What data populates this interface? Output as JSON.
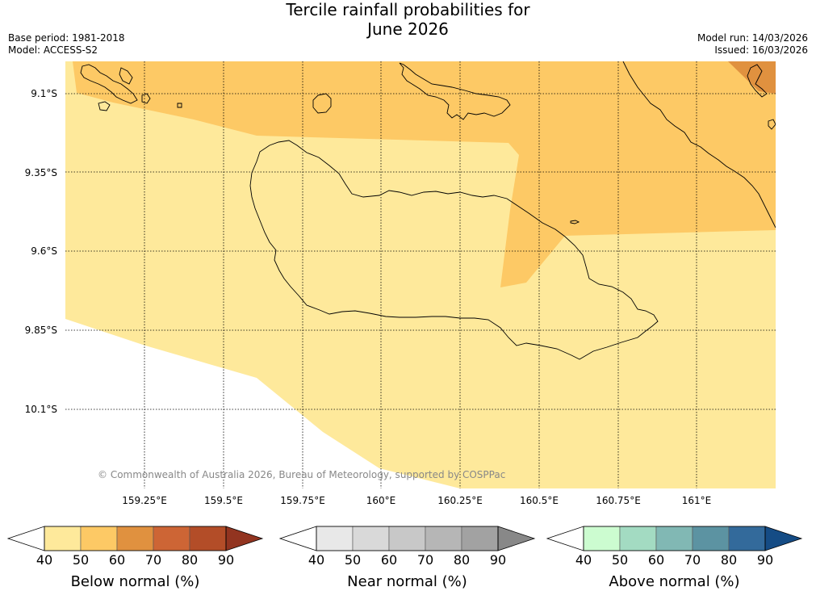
{
  "title_line1": "Tercile rainfall probabilities for",
  "title_line2": "June 2026",
  "meta": {
    "base_period": "Base period: 1981-2018",
    "model": "Model: ACCESS-S2",
    "model_run": "Model run: 14/03/2026",
    "issued": "Issued: 16/03/2026"
  },
  "map": {
    "lat_labels": [
      "9.1°S",
      "9.35°S",
      "9.6°S",
      "9.85°S",
      "10.1°S"
    ],
    "lon_labels": [
      "159.25°E",
      "159.5°E",
      "159.75°E",
      "160°E",
      "160.25°E",
      "160.5°E",
      "160.75°E",
      "161°E"
    ],
    "copyright": "© Commonwealth of Australia 2026, Bureau of Meteorology, supported by COSPPac",
    "fill_colors": {
      "below_40_50": "#fee99b",
      "below_50_60": "#fdc965",
      "below_60_70": "#e0913f"
    }
  },
  "colorbars": [
    {
      "title": "Below normal (%)",
      "ticks": [
        "40",
        "50",
        "60",
        "70",
        "80",
        "90"
      ],
      "colors": [
        "#ffffff",
        "#fee99b",
        "#fdc965",
        "#e0913f",
        "#cd6535",
        "#b34d28",
        "#923420"
      ]
    },
    {
      "title": "Near normal (%)",
      "ticks": [
        "40",
        "50",
        "60",
        "70",
        "80",
        "90"
      ],
      "colors": [
        "#ffffff",
        "#e8e8e8",
        "#d9d9d9",
        "#c8c8c8",
        "#b6b6b6",
        "#a2a2a2",
        "#888888"
      ]
    },
    {
      "title": "Above normal (%)",
      "ticks": [
        "40",
        "50",
        "60",
        "70",
        "80",
        "90"
      ],
      "colors": [
        "#ffffff",
        "#ccfcd0",
        "#a3dbc2",
        "#81b8b4",
        "#5c93a2",
        "#336a9b",
        "#154c85"
      ]
    }
  ]
}
